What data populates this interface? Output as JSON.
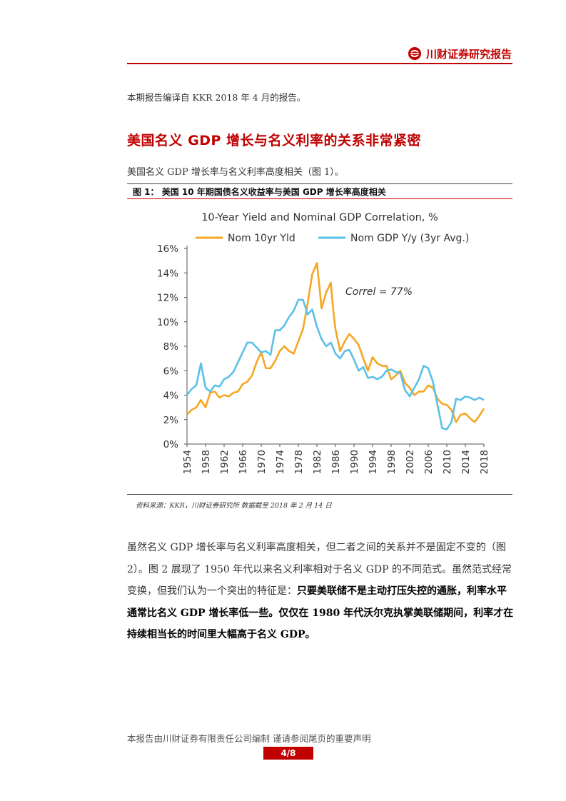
{
  "header": {
    "brand": "川财证券研究报告",
    "logo_icon": "sichuan-securities-logo-icon"
  },
  "intro": "本期报告编译自 KKR 2018 年 4 月的报告。",
  "section_title": "美国名义 GDP 增长与名义利率的关系非常紧密",
  "lead": "美国名义 GDP 增长率与名义利率高度相关（图 1）。",
  "figure": {
    "caption": "图 1：  美国 10 年期国债名义收益率与美国 GDP 增长率高度相关",
    "source": "资料来源：KKR，川财证券研究所    数据截至 2018 年 2 月 14 日"
  },
  "chart_data": {
    "type": "line",
    "title": "10-Year Yield and Nominal GDP Correlation, %",
    "annotation": "Correl = 77%",
    "ylim": [
      0,
      16
    ],
    "y_ticks": [
      "0%",
      "2%",
      "4%",
      "6%",
      "8%",
      "10%",
      "12%",
      "14%",
      "16%"
    ],
    "x_ticks": [
      "1954",
      "1958",
      "1962",
      "1966",
      "1970",
      "1974",
      "1978",
      "1982",
      "1986",
      "1990",
      "1994",
      "1998",
      "2002",
      "2006",
      "2010",
      "2014",
      "2018"
    ],
    "xlim": [
      1954,
      2018
    ],
    "legend_position": "top",
    "series": [
      {
        "name": "Nom 10yr Yld",
        "color": "#f5a623",
        "points": [
          [
            1954,
            2.4
          ],
          [
            1955,
            2.8
          ],
          [
            1956,
            3.0
          ],
          [
            1957,
            3.6
          ],
          [
            1958,
            3.0
          ],
          [
            1959,
            4.2
          ],
          [
            1960,
            4.3
          ],
          [
            1961,
            3.8
          ],
          [
            1962,
            4.0
          ],
          [
            1963,
            3.9
          ],
          [
            1964,
            4.2
          ],
          [
            1965,
            4.3
          ],
          [
            1966,
            4.9
          ],
          [
            1967,
            5.1
          ],
          [
            1968,
            5.6
          ],
          [
            1969,
            6.7
          ],
          [
            1970,
            7.5
          ],
          [
            1971,
            6.2
          ],
          [
            1972,
            6.2
          ],
          [
            1973,
            6.8
          ],
          [
            1974,
            7.6
          ],
          [
            1975,
            8.0
          ],
          [
            1976,
            7.6
          ],
          [
            1977,
            7.4
          ],
          [
            1978,
            8.4
          ],
          [
            1979,
            9.4
          ],
          [
            1980,
            11.5
          ],
          [
            1981,
            13.9
          ],
          [
            1982,
            14.8
          ],
          [
            1982.5,
            13.0
          ],
          [
            1983,
            11.1
          ],
          [
            1984,
            12.4
          ],
          [
            1985,
            13.2
          ],
          [
            1985.5,
            11.0
          ],
          [
            1986,
            9.4
          ],
          [
            1987,
            7.6
          ],
          [
            1988,
            8.4
          ],
          [
            1989,
            9.0
          ],
          [
            1990,
            8.6
          ],
          [
            1991,
            8.1
          ],
          [
            1992,
            7.0
          ],
          [
            1993,
            6.0
          ],
          [
            1994,
            7.1
          ],
          [
            1995,
            6.6
          ],
          [
            1996,
            6.4
          ],
          [
            1997,
            6.4
          ],
          [
            1998,
            5.3
          ],
          [
            1999,
            5.6
          ],
          [
            2000,
            6.0
          ],
          [
            2001,
            5.0
          ],
          [
            2002,
            4.6
          ],
          [
            2003,
            4.0
          ],
          [
            2004,
            4.3
          ],
          [
            2005,
            4.3
          ],
          [
            2006,
            4.8
          ],
          [
            2007,
            4.6
          ],
          [
            2008,
            3.7
          ],
          [
            2009,
            3.3
          ],
          [
            2010,
            3.2
          ],
          [
            2011,
            2.8
          ],
          [
            2012,
            1.8
          ],
          [
            2013,
            2.4
          ],
          [
            2014,
            2.5
          ],
          [
            2015,
            2.1
          ],
          [
            2016,
            1.8
          ],
          [
            2017,
            2.3
          ],
          [
            2018,
            2.9
          ]
        ]
      },
      {
        "name": "Nom GDP Y/y (3yr Avg.)",
        "color": "#5bc0e8",
        "points": [
          [
            1954,
            4.0
          ],
          [
            1955,
            4.5
          ],
          [
            1956,
            4.8
          ],
          [
            1957,
            6.6
          ],
          [
            1958,
            4.6
          ],
          [
            1959,
            4.3
          ],
          [
            1960,
            4.8
          ],
          [
            1961,
            4.7
          ],
          [
            1962,
            5.3
          ],
          [
            1963,
            5.5
          ],
          [
            1964,
            5.9
          ],
          [
            1965,
            6.7
          ],
          [
            1966,
            7.5
          ],
          [
            1967,
            8.3
          ],
          [
            1968,
            8.3
          ],
          [
            1969,
            7.9
          ],
          [
            1970,
            7.5
          ],
          [
            1971,
            7.6
          ],
          [
            1972,
            7.3
          ],
          [
            1973,
            9.3
          ],
          [
            1974,
            9.3
          ],
          [
            1975,
            9.7
          ],
          [
            1976,
            10.4
          ],
          [
            1977,
            10.9
          ],
          [
            1978,
            11.8
          ],
          [
            1979,
            11.8
          ],
          [
            1980,
            10.6
          ],
          [
            1981,
            11.0
          ],
          [
            1982,
            9.6
          ],
          [
            1983,
            8.6
          ],
          [
            1984,
            8.0
          ],
          [
            1985,
            8.3
          ],
          [
            1986,
            7.4
          ],
          [
            1987,
            7.0
          ],
          [
            1988,
            7.6
          ],
          [
            1989,
            7.7
          ],
          [
            1990,
            6.9
          ],
          [
            1991,
            6.0
          ],
          [
            1992,
            6.3
          ],
          [
            1993,
            5.4
          ],
          [
            1994,
            5.5
          ],
          [
            1995,
            5.3
          ],
          [
            1996,
            5.5
          ],
          [
            1997,
            6.0
          ],
          [
            1998,
            6.1
          ],
          [
            1999,
            5.9
          ],
          [
            2000,
            5.8
          ],
          [
            2001,
            4.4
          ],
          [
            2002,
            3.9
          ],
          [
            2003,
            4.6
          ],
          [
            2004,
            5.3
          ],
          [
            2005,
            6.4
          ],
          [
            2006,
            6.2
          ],
          [
            2007,
            5.1
          ],
          [
            2008,
            3.2
          ],
          [
            2009,
            1.3
          ],
          [
            2010,
            1.2
          ],
          [
            2011,
            1.8
          ],
          [
            2012,
            3.7
          ],
          [
            2013,
            3.6
          ],
          [
            2014,
            3.9
          ],
          [
            2015,
            3.8
          ],
          [
            2016,
            3.6
          ],
          [
            2017,
            3.8
          ],
          [
            2018,
            3.6
          ]
        ]
      }
    ]
  },
  "paragraph": {
    "normal": "虽然名义 GDP 增长率与名义利率高度相关，但二者之间的关系并不是固定不变的（图 2）。图 2 展现了 1950 年代以来名义利率相对于名义 GDP 的不同范式。虽然范式经常变换，但我们认为一个突出的特征是：",
    "bold": "只要美联储不是主动打压失控的通胀，利率水平通常比名义 GDP 增长率低一些。仅仅在 1980 年代沃尔克执掌美联储期间，利率才在持续相当长的时间里大幅高于名义 GDP。"
  },
  "footer": {
    "note": "本报告由川财证券有限责任公司编制  谨请参阅尾页的重要声明",
    "page": "4/8"
  }
}
